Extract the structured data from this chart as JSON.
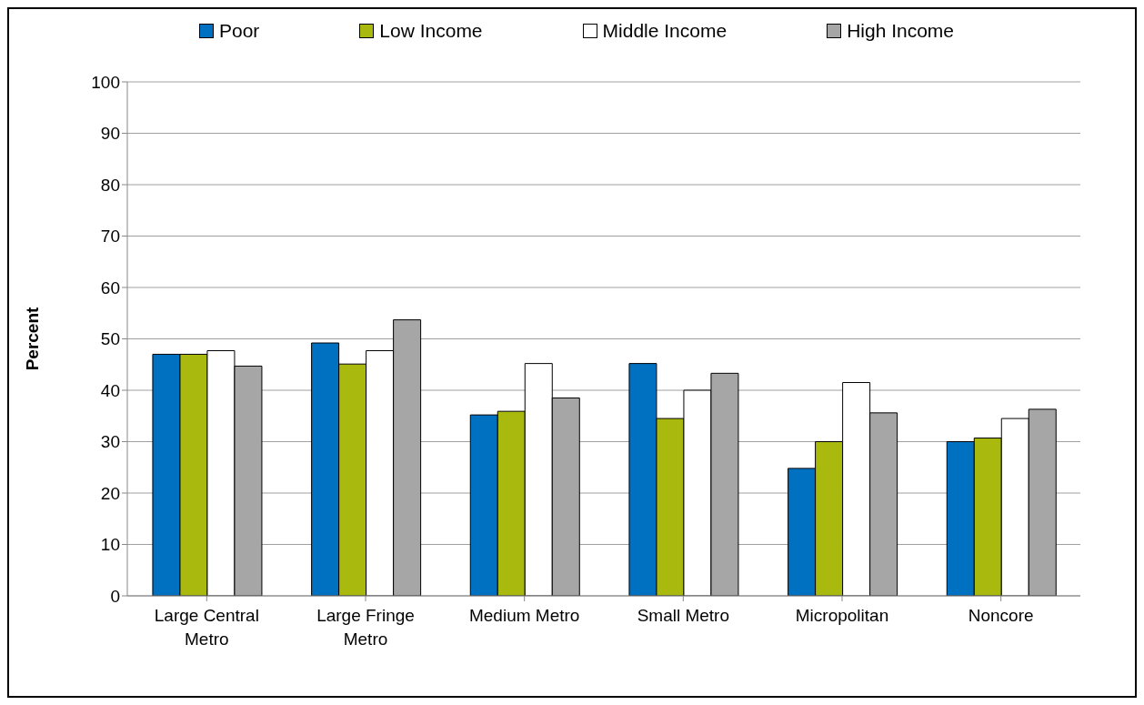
{
  "chart_data": {
    "type": "bar",
    "ylabel": "Percent",
    "categories": [
      "Large Central Metro",
      "Large Fringe Metro",
      "Medium Metro",
      "Small Metro",
      "Micropolitan",
      "Noncore"
    ],
    "series": [
      {
        "name": "Poor",
        "color": "#0070c0",
        "values": [
          47.0,
          49.2,
          35.2,
          45.2,
          24.8,
          30.0
        ]
      },
      {
        "name": "Low Income",
        "color": "#a9b90d",
        "values": [
          47.0,
          45.1,
          35.9,
          34.5,
          30.0,
          30.7
        ]
      },
      {
        "name": "Middle Income",
        "color": "#ffffff",
        "values": [
          47.7,
          47.7,
          45.2,
          40.0,
          41.5,
          34.5
        ]
      },
      {
        "name": "High Income",
        "color": "#a6a6a6",
        "values": [
          44.7,
          53.7,
          38.5,
          43.3,
          35.6,
          36.3
        ]
      }
    ],
    "ylim": [
      0,
      100
    ],
    "yticks": [
      0,
      10,
      20,
      30,
      40,
      50,
      60,
      70,
      80,
      90,
      100
    ],
    "grid": "y",
    "legend": "top"
  }
}
